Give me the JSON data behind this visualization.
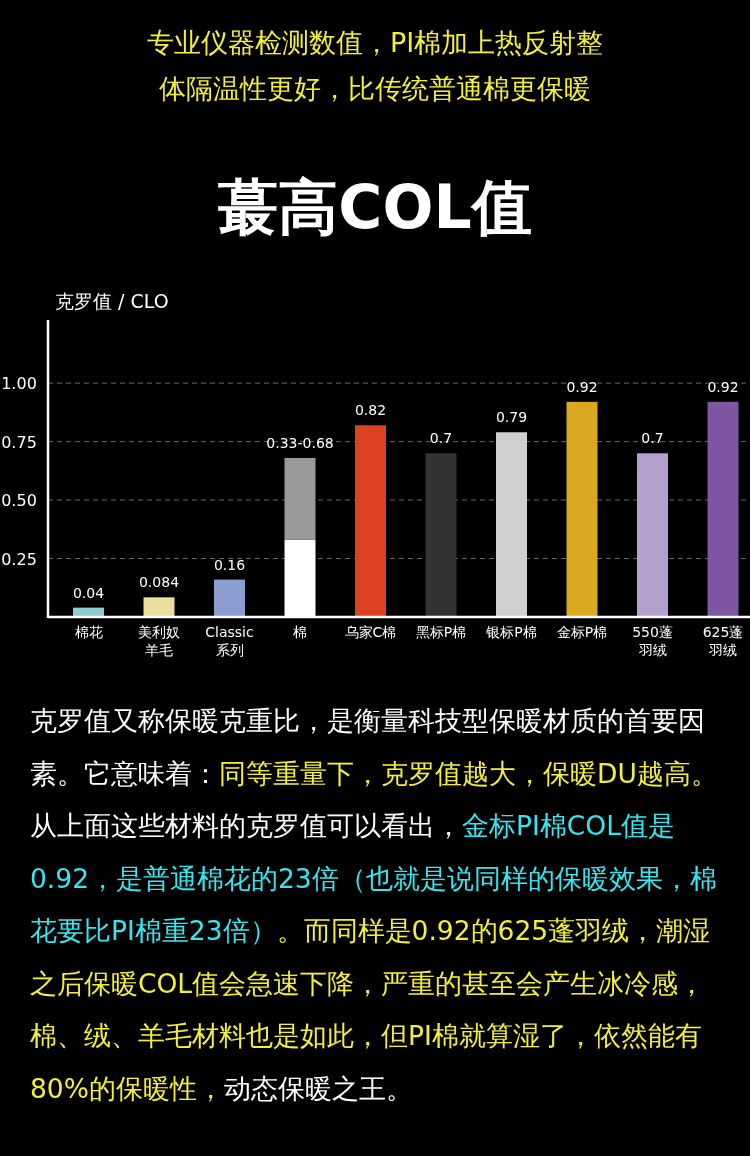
{
  "chart_data": {
    "type": "bar",
    "title": "蕞高COL值",
    "subtitle": "专业仪器检测数值，PI棉加上热反射整体隔温性更好，比传统普通棉更保暖",
    "ylabel": "克罗值 / CLO",
    "categories": [
      "棉花",
      "美利奴羊毛",
      "Classic\n系列",
      "棉",
      "乌家C棉",
      "黑标P棉",
      "银标P棉",
      "金标P棉",
      "550蓬羽绒",
      "625蓬羽绒"
    ],
    "stacked": true,
    "series": [
      {
        "colors": [
          "#8ecbd3",
          "#e8df9c",
          "#8b9ccf",
          "#ffffff",
          "#dc4122",
          "#333333",
          "#cfcfcf",
          "#dba91f",
          "#b59fcf",
          "#7f56a1"
        ],
        "values": [
          0.04,
          0.084,
          0.16,
          0.33,
          0.82,
          0.7,
          0.79,
          0.92,
          0.7,
          0.92
        ],
        "value_labels": [
          "0.04",
          "0.084",
          "0.16",
          null,
          "0.82",
          "0.7",
          "0.79",
          "0.92",
          "0.7",
          "0.92"
        ]
      },
      {
        "color": "#9a9a9a",
        "values": [
          null,
          null,
          null,
          0.35,
          null,
          null,
          null,
          null,
          null,
          null
        ],
        "value_labels": [
          null,
          null,
          null,
          "0.33-0.68",
          null,
          null,
          null,
          null,
          null,
          null
        ]
      }
    ],
    "ylim": [
      0,
      1.27
    ],
    "yticks": [
      {
        "value": 0.25,
        "label": "0.25"
      },
      {
        "value": 0.5,
        "label": "0.50"
      },
      {
        "value": 0.75,
        "label": "0.75"
      },
      {
        "value": 1.0,
        "label": "1.00"
      }
    ],
    "grid": "y",
    "annotations": [
      "克罗值又称保暖克重比，是衡量科技型保暖材质的首要因素。它意味着：",
      "同等重量下，克罗值越大，保暖DU越高。",
      "从上面这些材料的克罗值可以看出，",
      "金标PI棉COL值是0.92，是普通棉花的23倍（也就是说同样的保暖效果，棉花要比PI棉重23倍）",
      "。而同样是0.92的625蓬羽绒，潮湿之后保暖COL值会急速下降，严重的甚至会产生冰冷感，棉、绒、羊毛材料也是如此，但PI棉就算湿了，依然能有80%的保暖性，",
      "动态保暖之王。"
    ]
  }
}
